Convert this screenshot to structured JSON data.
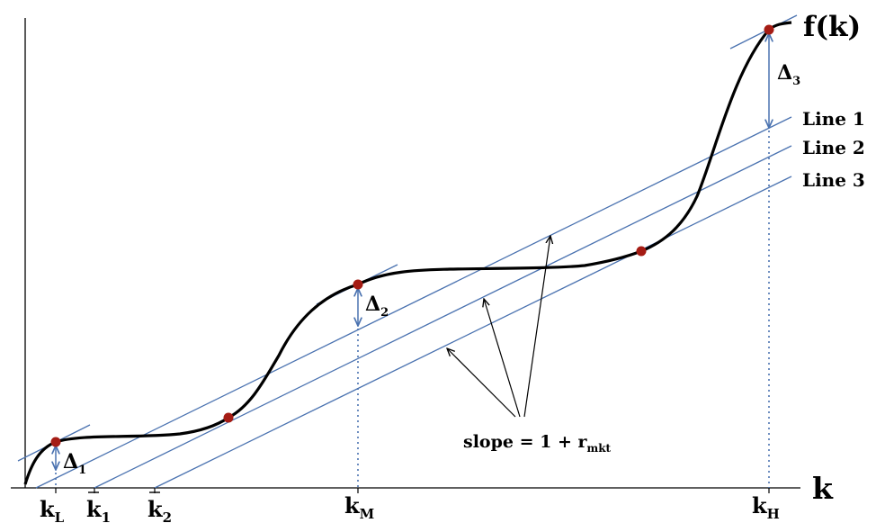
{
  "colors": {
    "curve": "#000000",
    "lines": "#4a72b0",
    "points": "#a51c14",
    "annotation": "#000000"
  },
  "labels": {
    "function": "f(k)",
    "x_axis": "k",
    "line_1": "Line 1",
    "line_2": "Line 2",
    "line_3": "Line 3",
    "slope_main": "slope = 1 + r",
    "slope_sub": "mkt",
    "delta_symbol": "Δ",
    "delta_1_sub": "1",
    "delta_2_sub": "2",
    "delta_3_sub": "3",
    "k_letter": "k",
    "kL_sub": "L",
    "k1_sub": "1",
    "k2_sub": "2",
    "kM_sub": "M",
    "kH_sub": "H"
  },
  "icons": {
    "tangency_point": "filled-circle",
    "gap_marker": "double-arrow",
    "pointer": "arrow"
  }
}
